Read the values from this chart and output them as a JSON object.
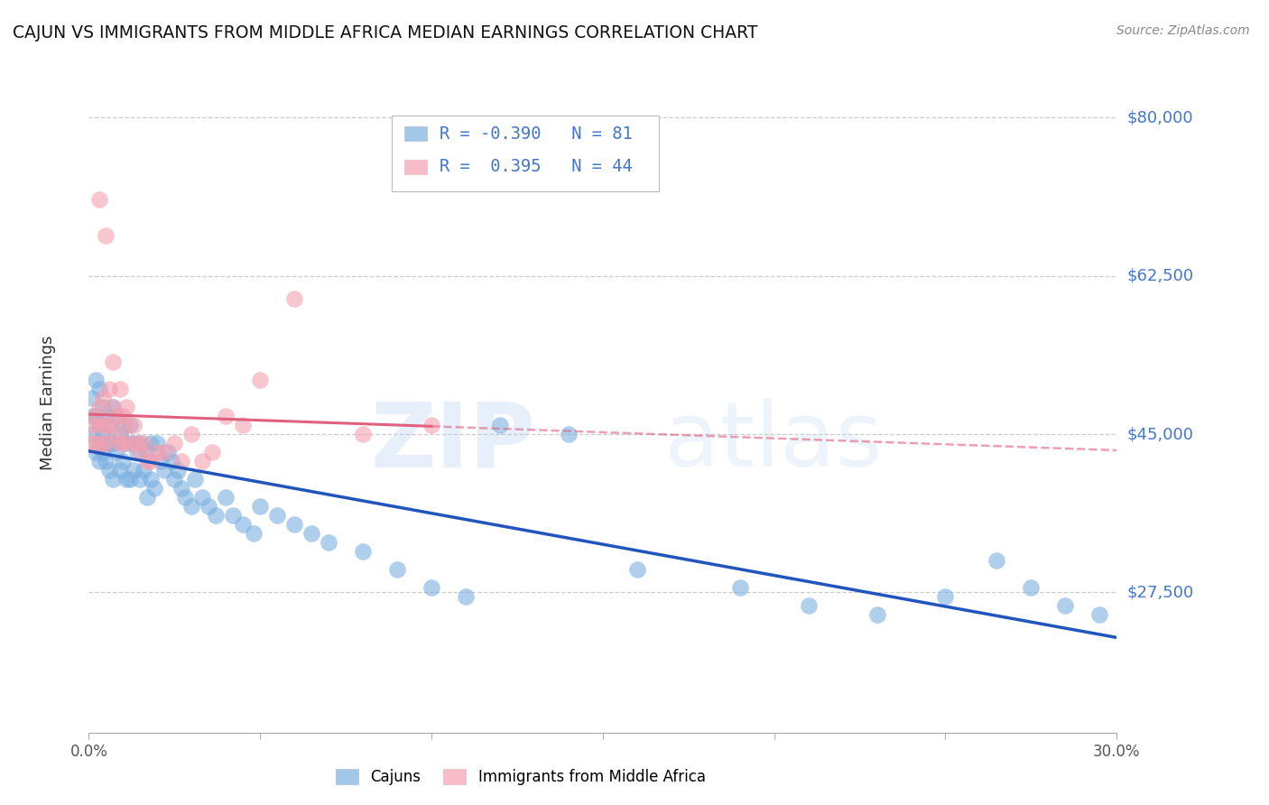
{
  "title": "CAJUN VS IMMIGRANTS FROM MIDDLE AFRICA MEDIAN EARNINGS CORRELATION CHART",
  "source": "Source: ZipAtlas.com",
  "xlabel": "",
  "ylabel": "Median Earnings",
  "xmin": 0.0,
  "xmax": 0.3,
  "ymin": 12000,
  "ymax": 85000,
  "yticks": [
    27500,
    45000,
    62500,
    80000
  ],
  "ytick_labels": [
    "$27,500",
    "$45,000",
    "$62,500",
    "$80,000"
  ],
  "xticks": [
    0.0,
    0.05,
    0.1,
    0.15,
    0.2,
    0.25,
    0.3
  ],
  "xtick_labels": [
    "0.0%",
    "",
    "",
    "",
    "",
    "",
    "30.0%"
  ],
  "background_color": "#ffffff",
  "grid_color": "#cccccc",
  "watermark_zip": "ZIP",
  "watermark_atlas": "atlas",
  "cajun_color": "#7ab0e0",
  "immigrant_color": "#f4a0b0",
  "cajun_line_color": "#2255bb",
  "immigrant_line_color": "#e06080",
  "cajun_R": -0.39,
  "cajun_N": 81,
  "immigrant_R": 0.395,
  "immigrant_N": 44,
  "cajun_data_x": [
    0.001,
    0.001,
    0.001,
    0.002,
    0.002,
    0.002,
    0.003,
    0.003,
    0.003,
    0.003,
    0.004,
    0.004,
    0.004,
    0.005,
    0.005,
    0.005,
    0.006,
    0.006,
    0.006,
    0.007,
    0.007,
    0.007,
    0.008,
    0.008,
    0.009,
    0.009,
    0.01,
    0.01,
    0.011,
    0.011,
    0.012,
    0.012,
    0.013,
    0.013,
    0.014,
    0.015,
    0.015,
    0.016,
    0.017,
    0.017,
    0.018,
    0.018,
    0.019,
    0.02,
    0.021,
    0.022,
    0.023,
    0.024,
    0.025,
    0.026,
    0.027,
    0.028,
    0.03,
    0.031,
    0.033,
    0.035,
    0.037,
    0.04,
    0.042,
    0.045,
    0.048,
    0.05,
    0.055,
    0.06,
    0.065,
    0.07,
    0.08,
    0.09,
    0.1,
    0.11,
    0.12,
    0.14,
    0.16,
    0.19,
    0.21,
    0.23,
    0.25,
    0.265,
    0.275,
    0.285,
    0.295
  ],
  "cajun_data_y": [
    49000,
    47000,
    45000,
    51000,
    47000,
    43000,
    50000,
    46000,
    44000,
    42000,
    48000,
    45000,
    43000,
    47000,
    44000,
    42000,
    46000,
    44000,
    41000,
    48000,
    44000,
    40000,
    47000,
    43000,
    45000,
    41000,
    46000,
    42000,
    44000,
    40000,
    46000,
    40000,
    44000,
    41000,
    43000,
    44000,
    40000,
    41000,
    43000,
    38000,
    44000,
    40000,
    39000,
    44000,
    42000,
    41000,
    43000,
    42000,
    40000,
    41000,
    39000,
    38000,
    37000,
    40000,
    38000,
    37000,
    36000,
    38000,
    36000,
    35000,
    34000,
    37000,
    36000,
    35000,
    34000,
    33000,
    32000,
    30000,
    28000,
    27000,
    46000,
    45000,
    30000,
    28000,
    26000,
    25000,
    27000,
    31000,
    28000,
    26000,
    25000
  ],
  "immigrant_data_x": [
    0.001,
    0.001,
    0.002,
    0.002,
    0.003,
    0.003,
    0.003,
    0.004,
    0.004,
    0.005,
    0.005,
    0.005,
    0.006,
    0.006,
    0.007,
    0.007,
    0.008,
    0.008,
    0.009,
    0.009,
    0.01,
    0.01,
    0.011,
    0.011,
    0.012,
    0.013,
    0.014,
    0.015,
    0.016,
    0.017,
    0.018,
    0.02,
    0.022,
    0.025,
    0.027,
    0.03,
    0.033,
    0.036,
    0.04,
    0.045,
    0.05,
    0.06,
    0.08,
    0.1
  ],
  "immigrant_data_y": [
    44000,
    46000,
    44000,
    47000,
    71000,
    46000,
    48000,
    49000,
    44000,
    67000,
    46000,
    44000,
    50000,
    46000,
    53000,
    48000,
    47000,
    45000,
    50000,
    44000,
    47000,
    44000,
    48000,
    46000,
    44000,
    46000,
    44000,
    43000,
    44000,
    42000,
    42000,
    43000,
    43000,
    44000,
    42000,
    45000,
    42000,
    43000,
    47000,
    46000,
    51000,
    60000,
    45000,
    46000
  ]
}
